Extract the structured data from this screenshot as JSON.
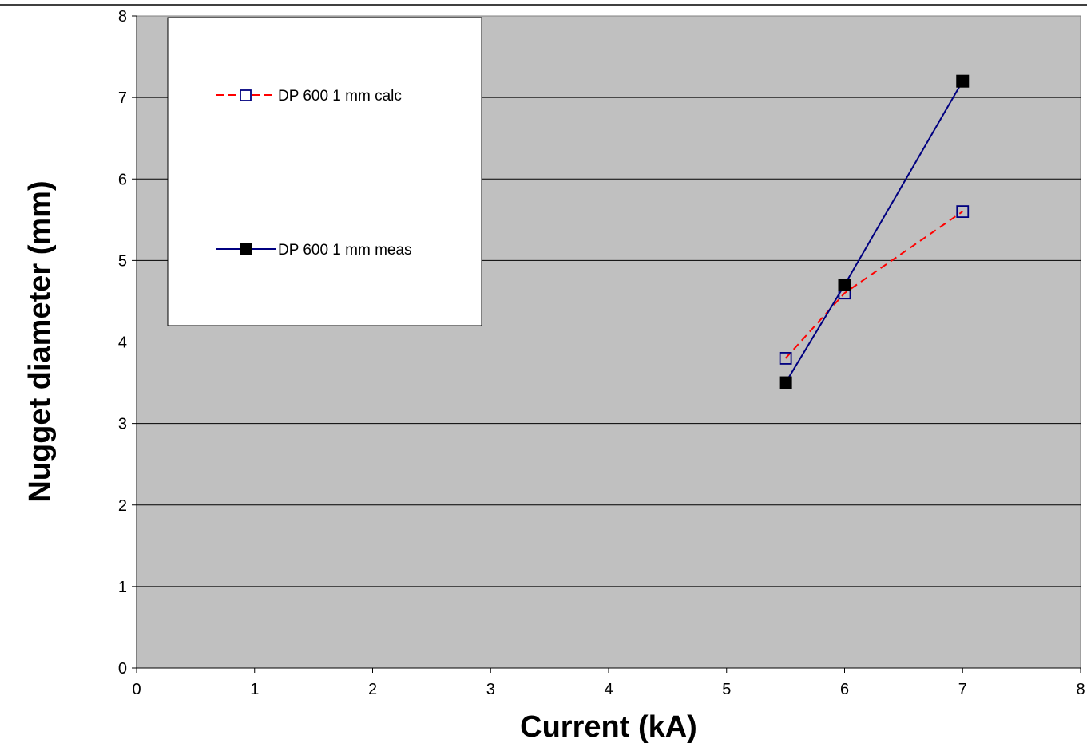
{
  "chart_data": {
    "type": "line",
    "xlabel": "Current (kA)",
    "ylabel": "Nugget diameter (mm)",
    "xlim": [
      0,
      8
    ],
    "ylim": [
      0,
      8
    ],
    "xticks": [
      "0",
      "1",
      "2",
      "3",
      "4",
      "5",
      "6",
      "7",
      "8"
    ],
    "yticks": [
      "0",
      "1",
      "2",
      "3",
      "4",
      "5",
      "6",
      "7",
      "8"
    ],
    "grid": "horizontal",
    "legend_position": "top-left",
    "plot_background": "#c0c0c0",
    "series": [
      {
        "name": "DP 600 1 mm calc",
        "x": [
          5.5,
          6,
          7
        ],
        "y": [
          3.8,
          4.6,
          5.6
        ],
        "line_color": "#ff0000",
        "line_style": "dashed",
        "marker": "open-square",
        "marker_color": "#000080"
      },
      {
        "name": "DP 600 1 mm meas",
        "x": [
          5.5,
          6,
          7
        ],
        "y": [
          3.5,
          4.7,
          7.2
        ],
        "line_color": "#000080",
        "line_style": "solid",
        "marker": "filled-square",
        "marker_color": "#000000"
      }
    ]
  }
}
